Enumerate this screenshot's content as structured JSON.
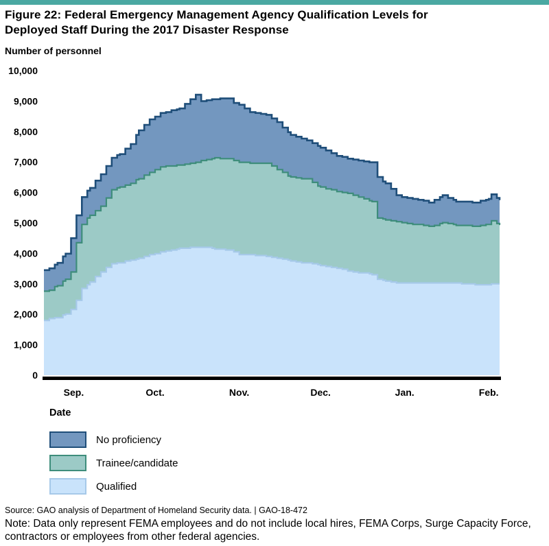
{
  "page": {
    "accent_color": "#4AA8A2",
    "title": "Figure 22: Federal Emergency Management Agency Qualification Levels for Deployed Staff During the 2017 Disaster Response",
    "source_line": "Source: GAO analysis of Department of Homeland Security data.  |  GAO-18-472",
    "note_line": "Note: Data only represent FEMA employees and do not include local hires, FEMA Corps, Surge Capacity Force, contractors or employees from other federal agencies."
  },
  "chart_data": {
    "type": "area",
    "stacked": true,
    "title": "Figure 22: Federal Emergency Management Agency Qualification Levels for Deployed Staff During the 2017 Disaster Response",
    "ylabel": "Number of personnel",
    "xlabel": "Date",
    "ylim": [
      0,
      10000
    ],
    "grid": false,
    "legend_position": "bottom-left",
    "yticks": [
      {
        "value": 10000,
        "label": "10,000"
      },
      {
        "value": 9000,
        "label": "9,000"
      },
      {
        "value": 8000,
        "label": "8,000"
      },
      {
        "value": 7000,
        "label": "7,000"
      },
      {
        "value": 6000,
        "label": "6,000"
      },
      {
        "value": 5000,
        "label": "5,000"
      },
      {
        "value": 4000,
        "label": "4,000"
      },
      {
        "value": 3000,
        "label": "3,000"
      },
      {
        "value": 2000,
        "label": "2,000"
      },
      {
        "value": 1000,
        "label": "1,000"
      },
      {
        "value": 0,
        "label": "0"
      }
    ],
    "x_domain_days": [
      0,
      168
    ],
    "xticks": [
      {
        "label": "Sep.",
        "day": 11
      },
      {
        "label": "Oct.",
        "day": 41
      },
      {
        "label": "Nov.",
        "day": 72
      },
      {
        "label": "Dec.",
        "day": 102
      },
      {
        "label": "Jan.",
        "day": 133
      },
      {
        "label": "Feb.",
        "day": 164
      }
    ],
    "sample_days": [
      0,
      2,
      5,
      8,
      10,
      12,
      14,
      17,
      21,
      25,
      28,
      32,
      35,
      39,
      43,
      50,
      56,
      58,
      63,
      68,
      70,
      72,
      76,
      82,
      86,
      91,
      97,
      102,
      108,
      114,
      121,
      123,
      126,
      130,
      136,
      142,
      147,
      152,
      159,
      164,
      165,
      168
    ],
    "series": [
      {
        "name": "Qualified",
        "fill": "#C9E3FB",
        "line": "#A6C9E9",
        "values": [
          1800,
          1850,
          1900,
          2000,
          2150,
          2450,
          2850,
          3050,
          3400,
          3650,
          3700,
          3780,
          3830,
          3950,
          4050,
          4170,
          4200,
          4210,
          4150,
          4100,
          4050,
          3970,
          3950,
          3900,
          3850,
          3750,
          3680,
          3610,
          3500,
          3400,
          3310,
          3160,
          3080,
          3040,
          3040,
          3020,
          3040,
          3020,
          2980,
          2980,
          2990,
          3000
        ]
      },
      {
        "name": "Trainee/candidate",
        "fill": "#9CCAC6",
        "line": "#3E8D7B",
        "values": [
          950,
          950,
          1050,
          1150,
          1250,
          1900,
          2100,
          2200,
          2150,
          2450,
          2470,
          2520,
          2630,
          2700,
          2790,
          2740,
          2800,
          2850,
          2990,
          3000,
          3010,
          3030,
          3000,
          3060,
          2910,
          2750,
          2760,
          2560,
          2530,
          2520,
          2400,
          1990,
          2030,
          2000,
          1920,
          1870,
          1960,
          1910,
          1910,
          1980,
          2080,
          1930
        ]
      },
      {
        "name": "No proficiency",
        "fill": "#7397BF",
        "line": "#1F4E79",
        "values": [
          700,
          700,
          750,
          850,
          1100,
          900,
          900,
          900,
          1050,
          1050,
          1080,
          1300,
          1580,
          1750,
          1760,
          1850,
          2200,
          1950,
          1920,
          2000,
          1880,
          1890,
          1700,
          1600,
          1550,
          1380,
          1260,
          1310,
          1170,
          1160,
          1270,
          1350,
          1200,
          860,
          830,
          790,
          900,
          780,
          790,
          830,
          880,
          820
        ]
      }
    ],
    "legend": [
      {
        "label": "No proficiency",
        "fill": "#7397BF",
        "border": "#1F4E79"
      },
      {
        "label": "Trainee/candidate",
        "fill": "#9CCAC6",
        "border": "#3E8D7B"
      },
      {
        "label": "Qualified",
        "fill": "#C9E3FB",
        "border": "#A6C9E9"
      }
    ]
  }
}
